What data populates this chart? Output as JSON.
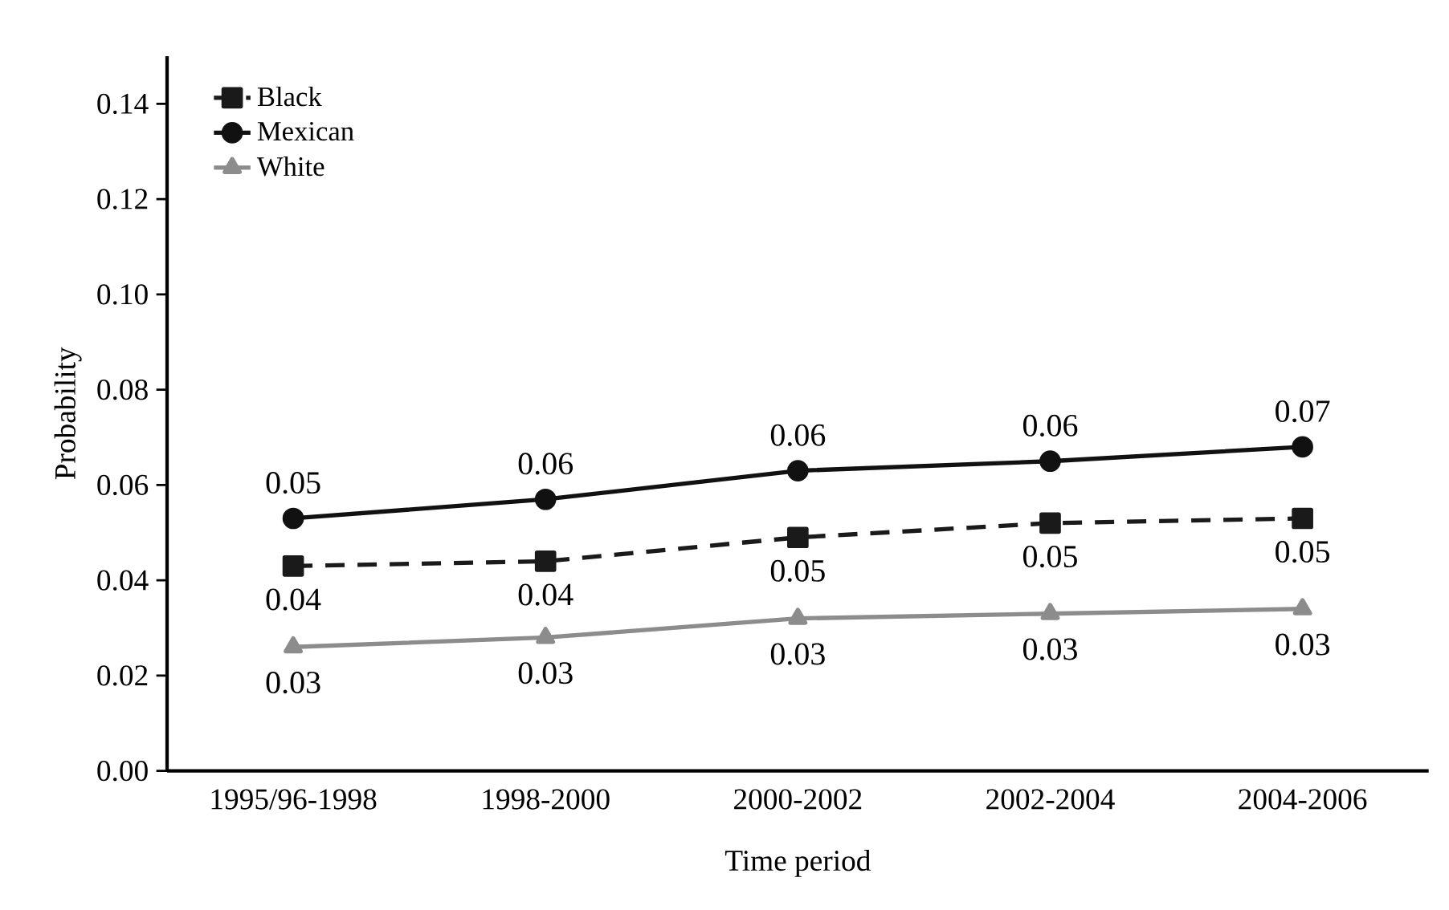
{
  "chart_data": {
    "type": "line",
    "xlabel": "Time period",
    "ylabel": "Probability",
    "categories": [
      "1995/96-1998",
      "1998-2000",
      "2000-2002",
      "2002-2004",
      "2004-2006"
    ],
    "series": [
      {
        "name": "Black",
        "color": "#1a1a1a",
        "marker": "square",
        "line_style": "dashed",
        "values": [
          0.043,
          0.044,
          0.049,
          0.052,
          0.053
        ],
        "value_labels": [
          "0.04",
          "0.04",
          "0.05",
          "0.05",
          "0.05"
        ]
      },
      {
        "name": "Mexican",
        "color": "#111111",
        "marker": "circle",
        "line_style": "solid",
        "values": [
          0.053,
          0.057,
          0.063,
          0.065,
          0.068
        ],
        "value_labels": [
          "0.05",
          "0.06",
          "0.06",
          "0.06",
          "0.07"
        ]
      },
      {
        "name": "White",
        "color": "#8c8c8c",
        "marker": "triangle",
        "line_style": "solid",
        "values": [
          0.026,
          0.028,
          0.032,
          0.033,
          0.034
        ],
        "value_labels": [
          "0.03",
          "0.03",
          "0.03",
          "0.03",
          "0.03"
        ]
      }
    ],
    "ylim": [
      0,
      0.15
    ],
    "yticks": [
      {
        "value": 0.0,
        "label": "0.00"
      },
      {
        "value": 0.02,
        "label": "0.02"
      },
      {
        "value": 0.04,
        "label": "0.04"
      },
      {
        "value": 0.06,
        "label": "0.06"
      },
      {
        "value": 0.08,
        "label": "0.08"
      },
      {
        "value": 0.1,
        "label": "0.10"
      },
      {
        "value": 0.12,
        "label": "0.12"
      },
      {
        "value": 0.14,
        "label": "0.14"
      }
    ],
    "legend": "top left",
    "grid": false
  }
}
